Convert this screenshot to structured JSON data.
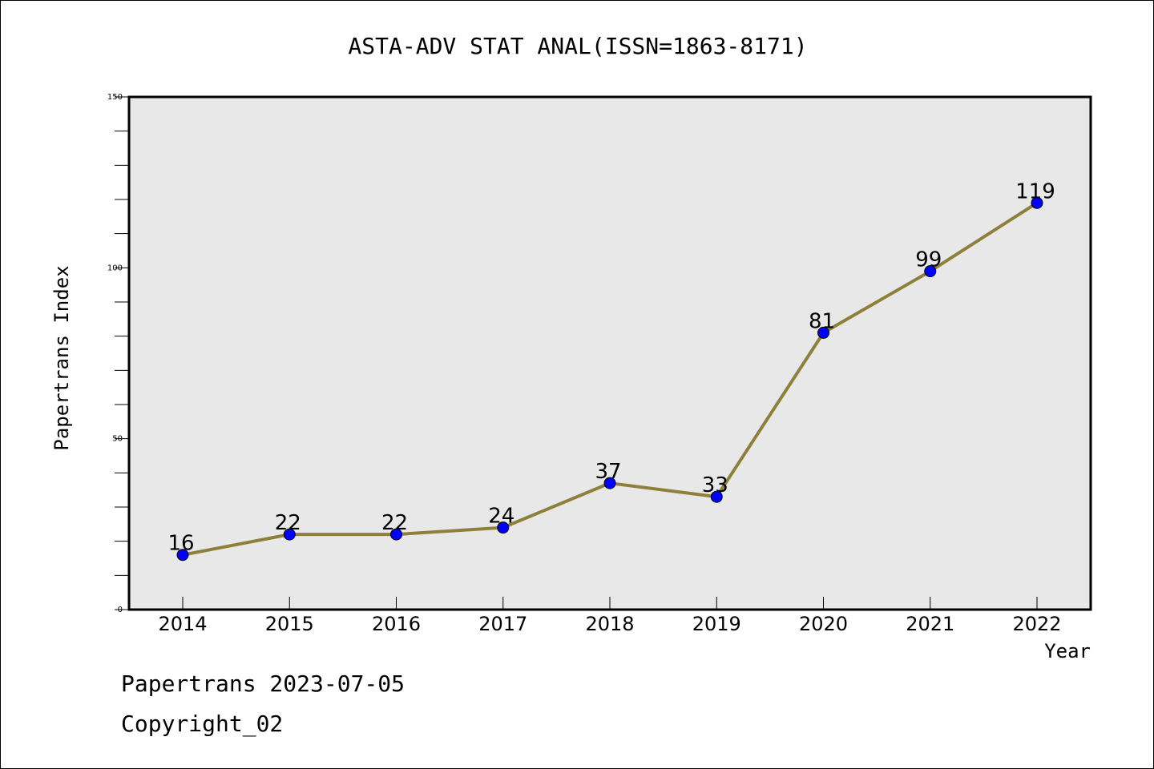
{
  "chart_data": {
    "type": "line",
    "title": "ASTA-ADV STAT ANAL(ISSN=1863-8171)",
    "xlabel": "Year",
    "ylabel": "Papertrans Index",
    "x": [
      "2014",
      "2015",
      "2016",
      "2017",
      "2018",
      "2019",
      "2020",
      "2021",
      "2022"
    ],
    "series": [
      {
        "values": [
          16,
          22,
          22,
          24,
          37,
          33,
          81,
          99,
          119
        ]
      }
    ],
    "data_labels": [
      "16",
      "22",
      "22",
      "24",
      "37",
      "33",
      "81",
      "99",
      "119"
    ],
    "ylim": [
      0,
      150
    ],
    "yticks": [
      "0",
      "50",
      "100",
      "150"
    ],
    "grid": false,
    "plot_background": "#e8e8e8",
    "line_color": "#8e7f3a",
    "marker_color": "#0000ff"
  },
  "footer": {
    "line1": "Papertrans 2023-07-05",
    "line2": "Copyright_02"
  }
}
